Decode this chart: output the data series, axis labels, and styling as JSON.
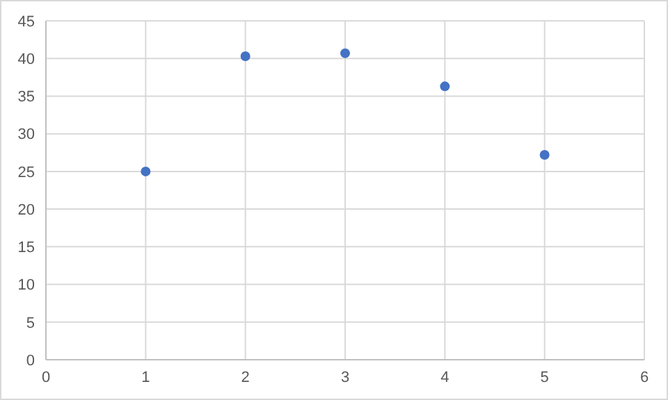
{
  "chart_data": {
    "type": "scatter",
    "x": [
      1,
      2,
      3,
      4,
      5
    ],
    "values": [
      25,
      40.3,
      40.7,
      36.3,
      27.2
    ],
    "color": "#4472c4",
    "xlim": [
      0,
      6
    ],
    "xticks": [
      0,
      1,
      2,
      3,
      4,
      5,
      6
    ],
    "ylim": [
      0,
      45
    ],
    "yticks": [
      0,
      5,
      10,
      15,
      20,
      25,
      30,
      35,
      40,
      45
    ],
    "grid": true,
    "marker": "circle",
    "legend": false
  }
}
